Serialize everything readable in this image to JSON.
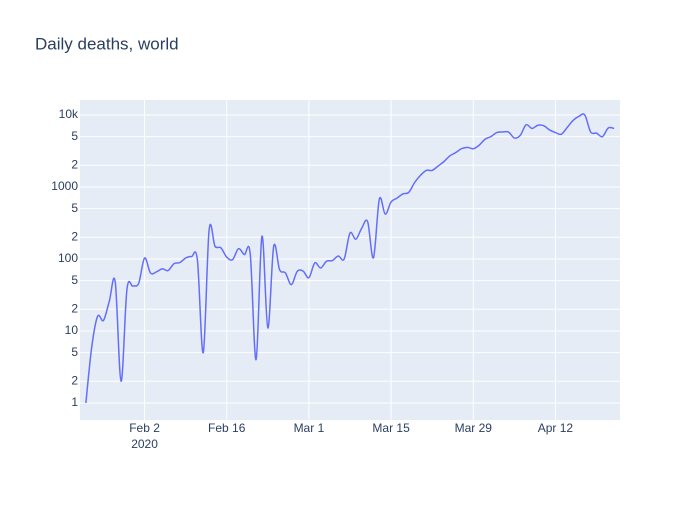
{
  "chart_data": {
    "type": "line",
    "title": "Daily deaths, world",
    "x": [
      "2020-01-23",
      "2020-01-24",
      "2020-01-25",
      "2020-01-26",
      "2020-01-27",
      "2020-01-28",
      "2020-01-29",
      "2020-01-30",
      "2020-01-31",
      "2020-02-01",
      "2020-02-02",
      "2020-02-03",
      "2020-02-04",
      "2020-02-05",
      "2020-02-06",
      "2020-02-07",
      "2020-02-08",
      "2020-02-09",
      "2020-02-10",
      "2020-02-11",
      "2020-02-12",
      "2020-02-13",
      "2020-02-14",
      "2020-02-15",
      "2020-02-16",
      "2020-02-17",
      "2020-02-18",
      "2020-02-19",
      "2020-02-20",
      "2020-02-21",
      "2020-02-22",
      "2020-02-23",
      "2020-02-24",
      "2020-02-25",
      "2020-02-26",
      "2020-02-27",
      "2020-02-28",
      "2020-02-29",
      "2020-03-01",
      "2020-03-02",
      "2020-03-03",
      "2020-03-04",
      "2020-03-05",
      "2020-03-06",
      "2020-03-07",
      "2020-03-08",
      "2020-03-09",
      "2020-03-10",
      "2020-03-11",
      "2020-03-12",
      "2020-03-13",
      "2020-03-14",
      "2020-03-15",
      "2020-03-16",
      "2020-03-17",
      "2020-03-18",
      "2020-03-19",
      "2020-03-20",
      "2020-03-21",
      "2020-03-22",
      "2020-03-23",
      "2020-03-24",
      "2020-03-25",
      "2020-03-26",
      "2020-03-27",
      "2020-03-28",
      "2020-03-29",
      "2020-03-30",
      "2020-03-31",
      "2020-04-01",
      "2020-04-02",
      "2020-04-03",
      "2020-04-04",
      "2020-04-05",
      "2020-04-06",
      "2020-04-07",
      "2020-04-08",
      "2020-04-09",
      "2020-04-10",
      "2020-04-11",
      "2020-04-12",
      "2020-04-13",
      "2020-04-14",
      "2020-04-15",
      "2020-04-16",
      "2020-04-17",
      "2020-04-18",
      "2020-04-19",
      "2020-04-20",
      "2020-04-21",
      "2020-04-22"
    ],
    "series": [
      {
        "name": "deaths",
        "color": "#636efa",
        "values": [
          1,
          6,
          16,
          14,
          26,
          48,
          2,
          38,
          42,
          46,
          103,
          64,
          66,
          73,
          69,
          86,
          89,
          103,
          108,
          97,
          5,
          254,
          150,
          143,
          106,
          98,
          139,
          115,
          118,
          4,
          207,
          11,
          150,
          71,
          64,
          44,
          67,
          68,
          55,
          88,
          75,
          93,
          95,
          110,
          100,
          229,
          188,
          268,
          330,
          104,
          680,
          420,
          620,
          700,
          800,
          840,
          1150,
          1450,
          1700,
          1700,
          1950,
          2250,
          2700,
          3000,
          3400,
          3550,
          3400,
          3800,
          4600,
          5000,
          5700,
          5800,
          5800,
          4800,
          5200,
          7300,
          6500,
          7200,
          7100,
          6200,
          5700,
          5400,
          6700,
          8400,
          9600,
          10000,
          5800,
          5600,
          5000,
          6600,
          6500
        ]
      }
    ],
    "xlim": [
      "2020-01-22",
      "2020-04-23"
    ],
    "xticks": [
      {
        "value": "2020-02-02",
        "label": "Feb 2"
      },
      {
        "value": "2020-02-16",
        "label": "Feb 16"
      },
      {
        "value": "2020-03-01",
        "label": "Mar 1"
      },
      {
        "value": "2020-03-15",
        "label": "Mar 15"
      },
      {
        "value": "2020-03-29",
        "label": "Mar 29"
      },
      {
        "value": "2020-04-12",
        "label": "Apr 12"
      }
    ],
    "x_year_label": "2020",
    "ylim": [
      0.58,
      16150
    ],
    "log_y": true,
    "yticks": [
      1,
      {
        "value": 2,
        "label": "2"
      },
      {
        "value": 5,
        "label": "5"
      },
      10,
      {
        "value": 20,
        "label": "2"
      },
      {
        "value": 50,
        "label": "5"
      },
      100,
      {
        "value": 200,
        "label": "2"
      },
      {
        "value": 500,
        "label": "5"
      },
      1000,
      {
        "value": 2000,
        "label": "2"
      },
      {
        "value": 5000,
        "label": "5"
      },
      {
        "value": 10000,
        "label": "10k"
      }
    ],
    "grid": true
  }
}
